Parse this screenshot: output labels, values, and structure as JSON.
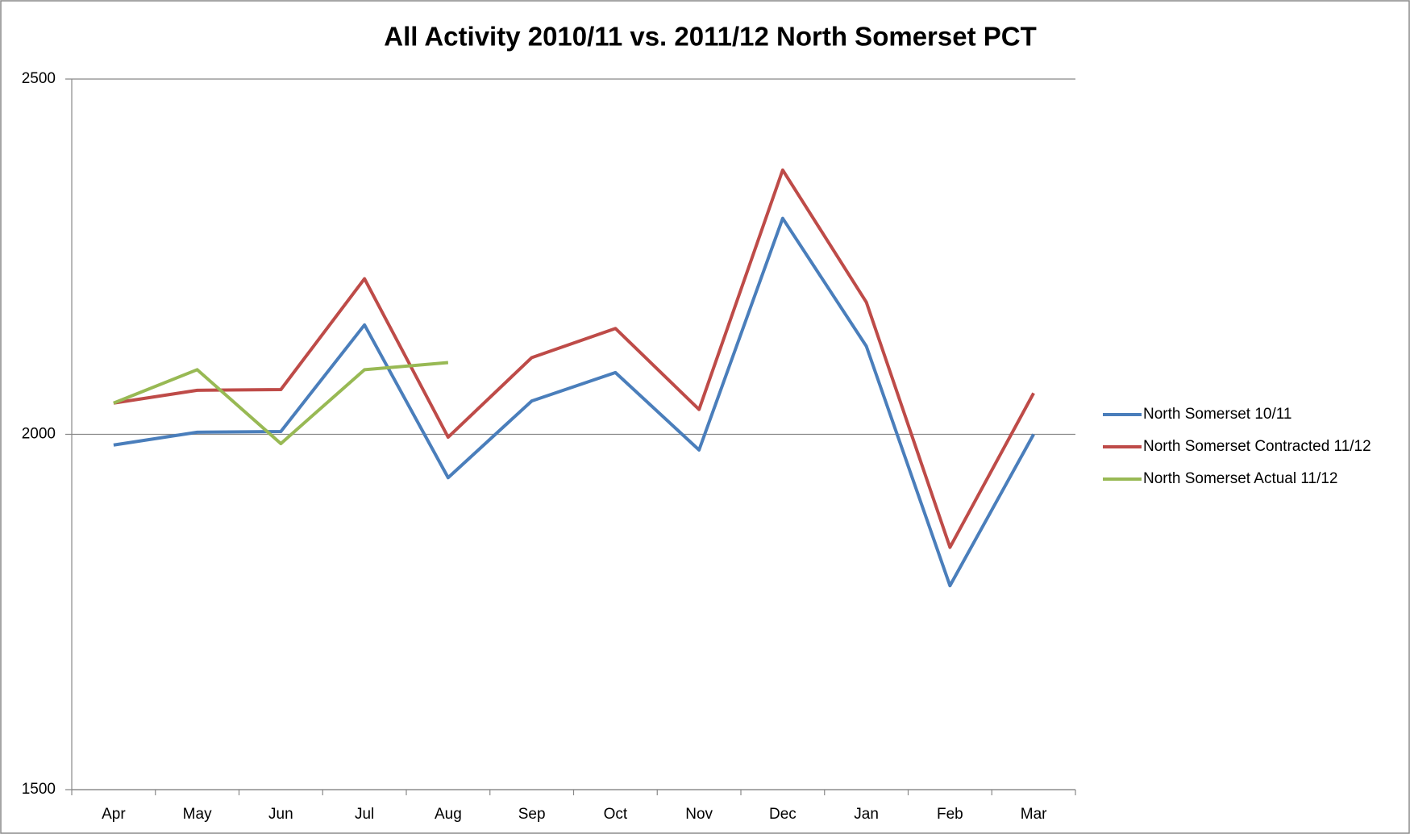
{
  "chart_data": {
    "type": "line",
    "title": "All Activity 2010/11 vs. 2011/12 North Somerset PCT",
    "categories": [
      "Apr",
      "May",
      "Jun",
      "Jul",
      "Aug",
      "Sep",
      "Oct",
      "Nov",
      "Dec",
      "Jan",
      "Feb",
      "Mar"
    ],
    "series": [
      {
        "name": "North Somerset 10/11",
        "color": "#4a7ebb",
        "values": [
          1985,
          2003,
          2004,
          2154,
          1939,
          2047,
          2087,
          1978,
          2304,
          2124,
          1787,
          2000
        ]
      },
      {
        "name": "North Somerset Contracted 11/12",
        "color": "#be4b48",
        "values": [
          2044,
          2062,
          2063,
          2219,
          1996,
          2108,
          2149,
          2035,
          2372,
          2186,
          1841,
          2058
        ]
      },
      {
        "name": "North Somerset Actual 11/12",
        "color": "#98b954",
        "values": [
          2044,
          2091,
          1987,
          2091,
          2101,
          null,
          null,
          null,
          null,
          null,
          null,
          null
        ]
      }
    ],
    "ylim": [
      1500,
      2500
    ],
    "yticks": [
      1500,
      2000,
      2500
    ],
    "grid": true,
    "legend": "right"
  }
}
